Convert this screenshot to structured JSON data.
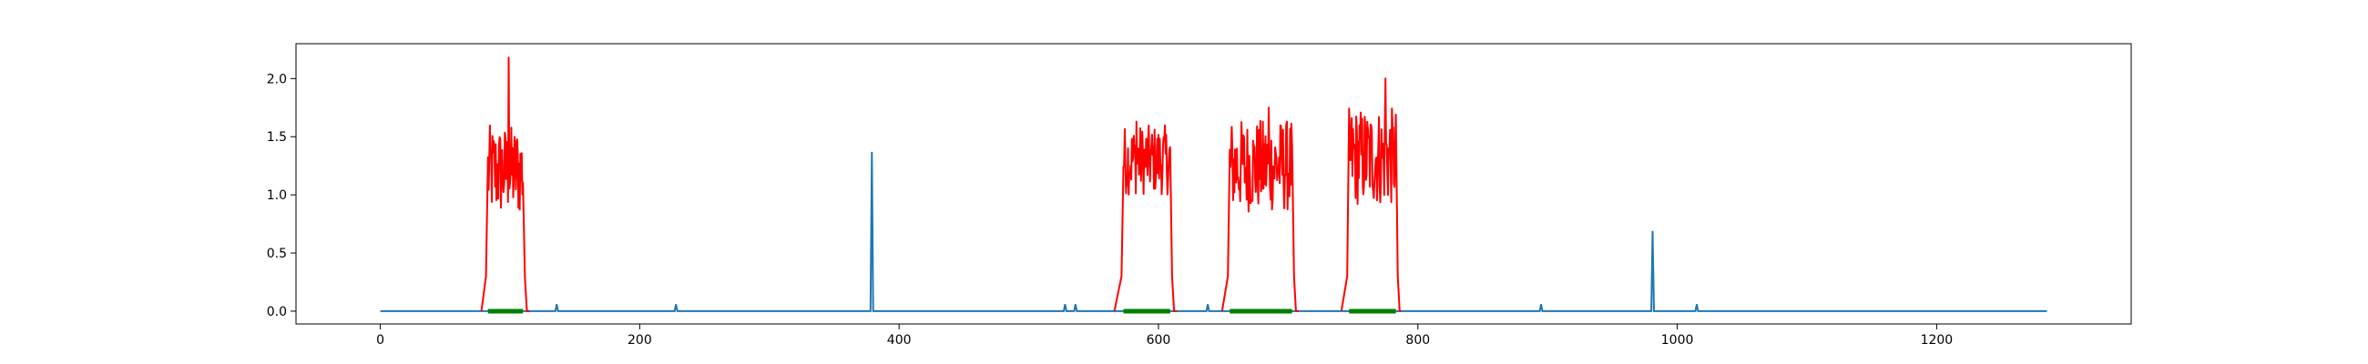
{
  "chart_data": {
    "type": "line",
    "title": "",
    "xlabel": "",
    "ylabel": "",
    "xlim": [
      -65,
      1350
    ],
    "ylim": [
      -0.11,
      2.3
    ],
    "x_ticks": [
      0,
      200,
      400,
      600,
      800,
      1000,
      1200
    ],
    "y_ticks": [
      0.0,
      0.5,
      1.0,
      1.5,
      2.0
    ],
    "x_tick_labels": [
      "0",
      "200",
      "400",
      "600",
      "800",
      "1000",
      "1200"
    ],
    "y_tick_labels": [
      "0.0",
      "0.5",
      "1.0",
      "1.5",
      "2.0"
    ],
    "grid": false,
    "legend": "none",
    "series": [
      {
        "color": "#1f77b4",
        "x_range": [
          0,
          1285
        ],
        "baseline": 0.0,
        "spikes": [
          {
            "x": 136,
            "y": 0.06
          },
          {
            "x": 228,
            "y": 0.06
          },
          {
            "x": 379,
            "y": 1.37
          },
          {
            "x": 528,
            "y": 0.06
          },
          {
            "x": 536,
            "y": 0.06
          },
          {
            "x": 638,
            "y": 0.06
          },
          {
            "x": 895,
            "y": 0.06
          },
          {
            "x": 981,
            "y": 0.69
          },
          {
            "x": 1015,
            "y": 0.06
          }
        ]
      },
      {
        "color": "#ff0000",
        "segments": [
          {
            "x_start": 78,
            "x_end": 115,
            "rise_end": 83,
            "fall_start": 110,
            "low": 0.8,
            "high": 1.6,
            "peak": {
              "x": 99,
              "y": 2.18
            }
          },
          {
            "x_start": 566,
            "x_end": 614,
            "rise_end": 573,
            "fall_start": 609,
            "low": 1.0,
            "high": 1.6,
            "peak": {
              "x": 583,
              "y": 1.63
            }
          },
          {
            "x_start": 649,
            "x_end": 708,
            "rise_end": 655,
            "fall_start": 703,
            "low": 0.85,
            "high": 1.65,
            "peak": {
              "x": 685,
              "y": 1.75
            }
          },
          {
            "x_start": 741,
            "x_end": 787,
            "rise_end": 747,
            "fall_start": 783,
            "low": 0.9,
            "high": 1.75,
            "peak": {
              "x": 775,
              "y": 2.0
            }
          }
        ]
      },
      {
        "color": "#008000",
        "y": 0.0,
        "segments": [
          [
            83,
            110
          ],
          [
            573,
            609
          ],
          [
            655,
            703
          ],
          [
            747,
            783
          ]
        ]
      }
    ]
  }
}
